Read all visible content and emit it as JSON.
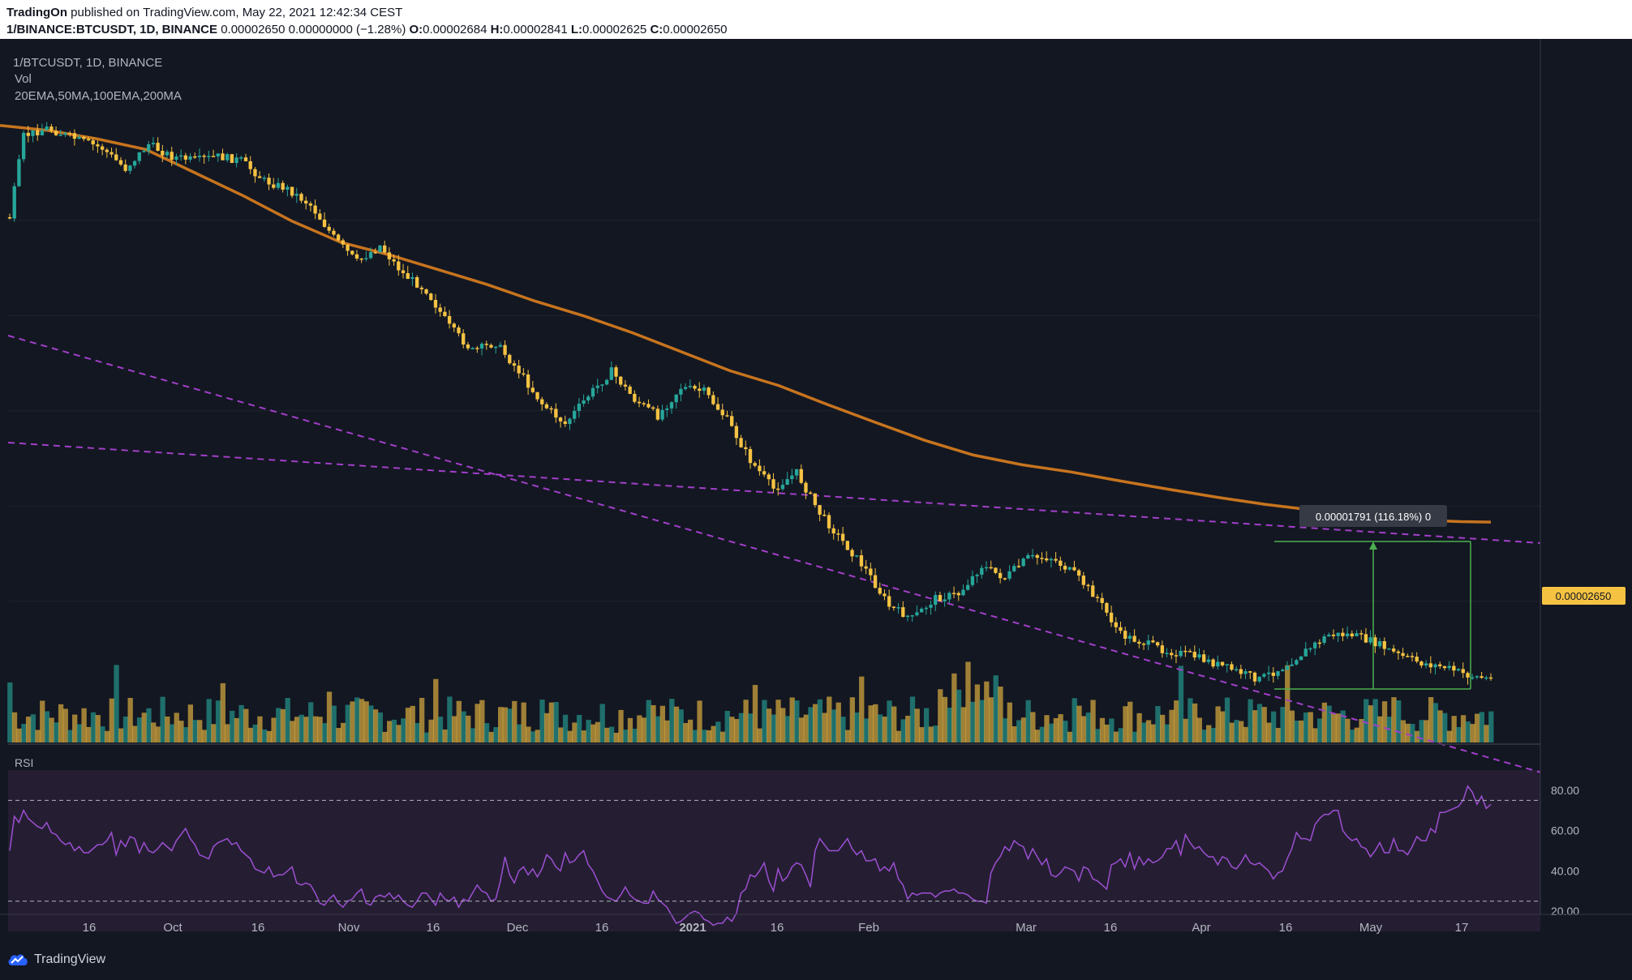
{
  "header": {
    "author": "TradingOn",
    "published_text": " published on TradingView.com, May 22, 2021 12:42:34 CEST",
    "symbol": "1/BINANCE:BTCUSDT, 1D, BINANCE",
    "ohlc_summary": "0.00002650 0.00000000 (−1.28%)",
    "o_label": "O:",
    "o_value": "0.00002684",
    "h_label": "H:",
    "h_value": "0.00002841",
    "l_label": "L:",
    "l_value": "0.00002625",
    "c_label": "C:",
    "c_value": "0.00002650"
  },
  "legend": {
    "symbol_line": "1/BTCUSDT, 1D, BINANCE",
    "vol": "Vol",
    "indicators": "20EMA,50MA,100EMA,200MA",
    "rsi": "RSI"
  },
  "colors": {
    "background": "#131722",
    "rsi_band": "#251e33",
    "grid": "#1e222d",
    "up": "#26a69a",
    "down": "#f5c242",
    "ema": "#c7741e",
    "trend": "#a23fc9",
    "rsi_line": "#9c4fd1",
    "measure": "#4caf50",
    "price_badge": "#f5c242"
  },
  "chart_data": {
    "type": "candlestick",
    "symbol": "1/BTCUSDT",
    "timeframe": "1D",
    "exchange": "BINANCE",
    "x_tick_labels": [
      "16",
      "Oct",
      "16",
      "Nov",
      "16",
      "Dec",
      "16",
      "2021",
      "16",
      "Feb",
      "Mar",
      "16",
      "Apr",
      "16",
      "May",
      "17"
    ],
    "price_scale": {
      "min": 2.25e-05,
      "max": 5.45e-05
    },
    "last_price_label": "0.00002650",
    "measure_label": "0.00001791 (116.18%) 0",
    "measure_low": 1.541e-05,
    "measure_high": 3.332e-05,
    "rsi_axis_labels": [
      "80.00",
      "60.00",
      "40.00",
      "20.00"
    ],
    "rsi_overbought": 75,
    "rsi_oversold": 25,
    "rsi_values": [
      50,
      67,
      64,
      70,
      66,
      64,
      62,
      61,
      64,
      59,
      58,
      55,
      53,
      54,
      50,
      52,
      49,
      49,
      51,
      53,
      53,
      55,
      59,
      48,
      55,
      52,
      57,
      56,
      49,
      54,
      50,
      49,
      51,
      54,
      52,
      50,
      55,
      58,
      61,
      56,
      53,
      48,
      47,
      46,
      52,
      54,
      55,
      56,
      53,
      54,
      50,
      48,
      46,
      41,
      40,
      39,
      42,
      37,
      38,
      38,
      40,
      42,
      34,
      33,
      34,
      33,
      29,
      24,
      23,
      26,
      28,
      24,
      22,
      25,
      26,
      29,
      31,
      24,
      23,
      27,
      28,
      27,
      29,
      26,
      28,
      25,
      23,
      22,
      25,
      29,
      29,
      26,
      23,
      29,
      26,
      25,
      27,
      22,
      26,
      25,
      29,
      33,
      30,
      29,
      25,
      26,
      35,
      47,
      38,
      34,
      40,
      42,
      38,
      41,
      37,
      41,
      48,
      46,
      42,
      40,
      49,
      44,
      45,
      48,
      50,
      43,
      40,
      35,
      30,
      27,
      26,
      25,
      28,
      32,
      28,
      26,
      25,
      24,
      24,
      30,
      26,
      24,
      22,
      18,
      14,
      15,
      17,
      19,
      20,
      19,
      16,
      15,
      13,
      14,
      14,
      17,
      15,
      19,
      29,
      31,
      38,
      37,
      40,
      44,
      35,
      30,
      41,
      35,
      37,
      42,
      44,
      43,
      38,
      32,
      50,
      56,
      53,
      50,
      50,
      50,
      53,
      56,
      51,
      48,
      50,
      45,
      45,
      46,
      40,
      42,
      40,
      44,
      36,
      33,
      26,
      29,
      28,
      29,
      29,
      29,
      27,
      29,
      30,
      30,
      31,
      29,
      29,
      28,
      26,
      25,
      25,
      24,
      39,
      44,
      47,
      52,
      50,
      55,
      53,
      52,
      46,
      51,
      47,
      43,
      46,
      38,
      37,
      39,
      42,
      41,
      40,
      35,
      42,
      41,
      36,
      35,
      33,
      31,
      43,
      44,
      46,
      42,
      49,
      41,
      47,
      43,
      46,
      44,
      45,
      47,
      51,
      51,
      55,
      48,
      58,
      54,
      51,
      52,
      49,
      47,
      47,
      43,
      47,
      46,
      42,
      41,
      44,
      48,
      44,
      43,
      44,
      42,
      40,
      36,
      39,
      40,
      46,
      51,
      59,
      56,
      56,
      55,
      63,
      66,
      68,
      68,
      70,
      70,
      60,
      57,
      55,
      56,
      52,
      51,
      47,
      50,
      54,
      49,
      49,
      56,
      50,
      50,
      48,
      52,
      57,
      55,
      55,
      61,
      59,
      69,
      69,
      70,
      71,
      72,
      75,
      82,
      79,
      73,
      77,
      71,
      73
    ]
  }
}
